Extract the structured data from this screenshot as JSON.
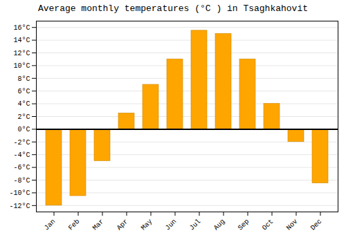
{
  "chart_data": {
    "type": "bar",
    "title": "Average monthly temperatures (°C ) in Tsaghkahovit",
    "categories": [
      "Jan",
      "Feb",
      "Mar",
      "Apr",
      "May",
      "Jun",
      "Jul",
      "Aug",
      "Sep",
      "Oct",
      "Nov",
      "Dec"
    ],
    "values": [
      -12,
      -10.5,
      -5,
      2.5,
      7,
      11,
      15.5,
      15,
      11,
      4,
      -2,
      -8.5
    ],
    "color": "#FFA500",
    "ylim": [
      -13,
      17
    ],
    "yticks": [
      {
        "value": -12,
        "label": "-12°C"
      },
      {
        "value": -10,
        "label": "-10°C"
      },
      {
        "value": -8,
        "label": "-8°C"
      },
      {
        "value": -6,
        "label": "-6°C"
      },
      {
        "value": -4,
        "label": "-4°C"
      },
      {
        "value": -2,
        "label": "-2°C"
      },
      {
        "value": 0,
        "label": "0°C"
      },
      {
        "value": 2,
        "label": "2°C"
      },
      {
        "value": 4,
        "label": "4°C"
      },
      {
        "value": 6,
        "label": "6°C"
      },
      {
        "value": 8,
        "label": "8°C"
      },
      {
        "value": 10,
        "label": "10°C"
      },
      {
        "value": 12,
        "label": "12°C"
      },
      {
        "value": 14,
        "label": "14°C"
      },
      {
        "value": 16,
        "label": "16°C"
      }
    ],
    "grid": true
  }
}
